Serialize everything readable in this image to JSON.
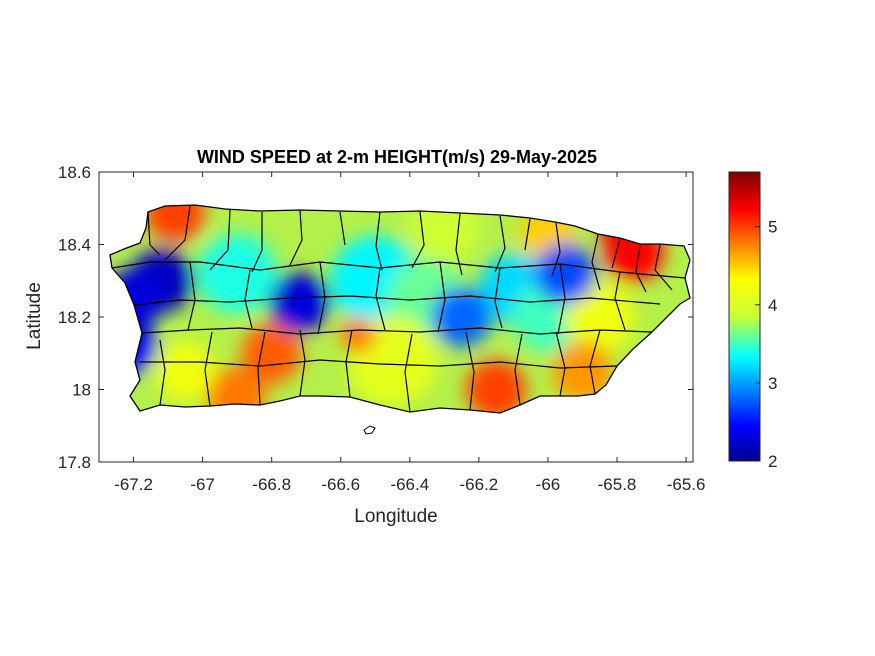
{
  "figure": {
    "title": "WIND SPEED at 2-m HEIGHT(m/s) 29-May-2025",
    "xlabel": "Longitude",
    "ylabel": "Latitude"
  },
  "map": {
    "region": "Puerto Rico",
    "variable": "wind speed at 2-m height",
    "units": "m/s",
    "date": "29-May-2025",
    "xlim": [
      -67.3,
      -65.58
    ],
    "ylim": [
      17.8,
      18.6
    ],
    "x_ticks": [
      "-67.2",
      "-67",
      "-66.8",
      "-66.6",
      "-66.4",
      "-66.2",
      "-66",
      "-65.8",
      "-65.6"
    ],
    "y_ticks": [
      "18.6",
      "18.4",
      "18.2",
      "18",
      "17.8"
    ],
    "colormap": "jet",
    "colorbar": {
      "range": [
        2,
        5.7
      ],
      "ticks": [
        "5",
        "4",
        "3",
        "2"
      ]
    },
    "colors": {
      "low": "#00008f",
      "mid_low": "#00c8ff",
      "mid": "#c8ff37",
      "mid_high": "#ff9b00",
      "high": "#800000",
      "boundaries": "#000000"
    },
    "features": [
      {
        "name": "western low",
        "lon": -67.2,
        "lat": 18.25,
        "value": 2.3
      },
      {
        "name": "central low",
        "lon": -66.72,
        "lat": 18.24,
        "value": 2.3
      },
      {
        "name": "northeast low",
        "lon": -65.95,
        "lat": 18.32,
        "value": 2.7
      },
      {
        "name": "south-central low",
        "lon": -66.25,
        "lat": 18.2,
        "value": 2.8
      },
      {
        "name": "northwest high",
        "lon": -67.08,
        "lat": 18.49,
        "value": 5.0
      },
      {
        "name": "northeast high",
        "lon": -65.75,
        "lat": 18.38,
        "value": 5.2
      },
      {
        "name": "southwest high",
        "lon": -66.8,
        "lat": 18.1,
        "value": 4.9
      },
      {
        "name": "south coast high",
        "lon": -66.15,
        "lat": 18.0,
        "value": 5.0
      },
      {
        "name": "southeast high",
        "lon": -65.9,
        "lat": 18.05,
        "value": 4.7
      }
    ]
  }
}
